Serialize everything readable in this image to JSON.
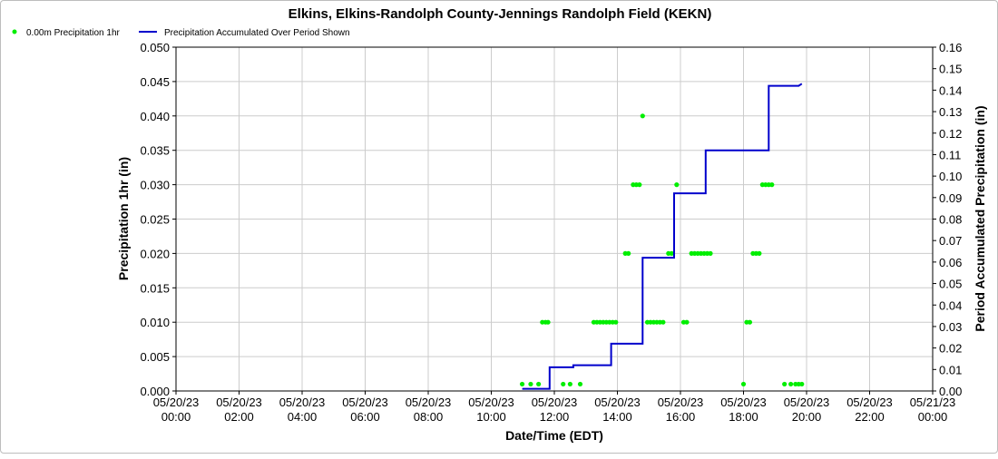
{
  "chart_data": {
    "type": "scatter+line",
    "title": "Elkins, Elkins-Randolph County-Jennings Randolph Field (KEKN)",
    "legend": [
      {
        "name": "0.00m Precipitation 1hr",
        "marker": "dot",
        "color": "#00ee00"
      },
      {
        "name": "Precipitation Accumulated Over Period Shown",
        "marker": "line",
        "color": "#0000cc"
      }
    ],
    "xlabel": "Date/Time (EDT)",
    "ylabel_left": "Precipitation 1hr (in)",
    "ylabel_right": "Period Accumulated Precipitation (in)",
    "x_ticks": [
      {
        "date": "05/20/23",
        "time": "00:00",
        "hour": 0
      },
      {
        "date": "05/20/23",
        "time": "02:00",
        "hour": 2
      },
      {
        "date": "05/20/23",
        "time": "04:00",
        "hour": 4
      },
      {
        "date": "05/20/23",
        "time": "06:00",
        "hour": 6
      },
      {
        "date": "05/20/23",
        "time": "08:00",
        "hour": 8
      },
      {
        "date": "05/20/23",
        "time": "10:00",
        "hour": 10
      },
      {
        "date": "05/20/23",
        "time": "12:00",
        "hour": 12
      },
      {
        "date": "05/20/23",
        "time": "14:00",
        "hour": 14
      },
      {
        "date": "05/20/23",
        "time": "16:00",
        "hour": 16
      },
      {
        "date": "05/20/23",
        "time": "18:00",
        "hour": 18
      },
      {
        "date": "05/20/23",
        "time": "20:00",
        "hour": 20
      },
      {
        "date": "05/20/23",
        "time": "22:00",
        "hour": 22
      },
      {
        "date": "05/21/23",
        "time": "00:00",
        "hour": 24
      }
    ],
    "y_left_ticks": [
      "0.000",
      "0.005",
      "0.010",
      "0.015",
      "0.020",
      "0.025",
      "0.030",
      "0.035",
      "0.040",
      "0.045",
      "0.050"
    ],
    "y_right_ticks": [
      "0.00",
      "0.01",
      "0.02",
      "0.03",
      "0.04",
      "0.05",
      "0.06",
      "0.07",
      "0.08",
      "0.09",
      "0.10",
      "0.11",
      "0.12",
      "0.13",
      "0.14",
      "0.15",
      "0.16"
    ],
    "xlim": [
      0,
      24
    ],
    "ylim_left": [
      0,
      0.05
    ],
    "ylim_right": [
      0,
      0.16
    ],
    "grid": true,
    "legend_position": "top-left",
    "precip_1hr_points": [
      {
        "hour": 10.98,
        "value": 0.001
      },
      {
        "hour": 11.25,
        "value": 0.001
      },
      {
        "hour": 11.5,
        "value": 0.001
      },
      {
        "hour": 11.62,
        "value": 0.01
      },
      {
        "hour": 11.72,
        "value": 0.01
      },
      {
        "hour": 11.8,
        "value": 0.01
      },
      {
        "hour": 12.28,
        "value": 0.001
      },
      {
        "hour": 12.5,
        "value": 0.001
      },
      {
        "hour": 12.82,
        "value": 0.001
      },
      {
        "hour": 13.25,
        "value": 0.01
      },
      {
        "hour": 13.35,
        "value": 0.01
      },
      {
        "hour": 13.45,
        "value": 0.01
      },
      {
        "hour": 13.55,
        "value": 0.01
      },
      {
        "hour": 13.65,
        "value": 0.01
      },
      {
        "hour": 13.75,
        "value": 0.01
      },
      {
        "hour": 13.85,
        "value": 0.01
      },
      {
        "hour": 13.95,
        "value": 0.01
      },
      {
        "hour": 14.25,
        "value": 0.02
      },
      {
        "hour": 14.35,
        "value": 0.02
      },
      {
        "hour": 14.5,
        "value": 0.03
      },
      {
        "hour": 14.6,
        "value": 0.03
      },
      {
        "hour": 14.7,
        "value": 0.03
      },
      {
        "hour": 14.8,
        "value": 0.04
      },
      {
        "hour": 14.95,
        "value": 0.01
      },
      {
        "hour": 15.05,
        "value": 0.01
      },
      {
        "hour": 15.15,
        "value": 0.01
      },
      {
        "hour": 15.25,
        "value": 0.01
      },
      {
        "hour": 15.35,
        "value": 0.01
      },
      {
        "hour": 15.45,
        "value": 0.01
      },
      {
        "hour": 15.62,
        "value": 0.02
      },
      {
        "hour": 15.72,
        "value": 0.02
      },
      {
        "hour": 15.88,
        "value": 0.03
      },
      {
        "hour": 16.1,
        "value": 0.01
      },
      {
        "hour": 16.2,
        "value": 0.01
      },
      {
        "hour": 16.35,
        "value": 0.02
      },
      {
        "hour": 16.45,
        "value": 0.02
      },
      {
        "hour": 16.55,
        "value": 0.02
      },
      {
        "hour": 16.65,
        "value": 0.02
      },
      {
        "hour": 16.75,
        "value": 0.02
      },
      {
        "hour": 16.85,
        "value": 0.02
      },
      {
        "hour": 16.95,
        "value": 0.02
      },
      {
        "hour": 18.0,
        "value": 0.001
      },
      {
        "hour": 18.1,
        "value": 0.01
      },
      {
        "hour": 18.2,
        "value": 0.01
      },
      {
        "hour": 18.3,
        "value": 0.02
      },
      {
        "hour": 18.4,
        "value": 0.02
      },
      {
        "hour": 18.5,
        "value": 0.02
      },
      {
        "hour": 18.6,
        "value": 0.03
      },
      {
        "hour": 18.7,
        "value": 0.03
      },
      {
        "hour": 18.8,
        "value": 0.03
      },
      {
        "hour": 18.9,
        "value": 0.03
      },
      {
        "hour": 19.3,
        "value": 0.001
      },
      {
        "hour": 19.5,
        "value": 0.001
      },
      {
        "hour": 19.65,
        "value": 0.001
      },
      {
        "hour": 19.75,
        "value": 0.001
      },
      {
        "hour": 19.85,
        "value": 0.001
      }
    ],
    "accumulated_line": [
      {
        "hour": 10.98,
        "value": 0.001
      },
      {
        "hour": 11.85,
        "value": 0.001
      },
      {
        "hour": 11.85,
        "value": 0.011
      },
      {
        "hour": 12.6,
        "value": 0.011
      },
      {
        "hour": 12.6,
        "value": 0.012
      },
      {
        "hour": 13.8,
        "value": 0.012
      },
      {
        "hour": 13.8,
        "value": 0.022
      },
      {
        "hour": 14.8,
        "value": 0.022
      },
      {
        "hour": 14.8,
        "value": 0.062
      },
      {
        "hour": 15.8,
        "value": 0.062
      },
      {
        "hour": 15.8,
        "value": 0.092
      },
      {
        "hour": 16.8,
        "value": 0.092
      },
      {
        "hour": 16.8,
        "value": 0.112
      },
      {
        "hour": 18.8,
        "value": 0.112
      },
      {
        "hour": 18.8,
        "value": 0.142
      },
      {
        "hour": 19.75,
        "value": 0.142
      },
      {
        "hour": 19.85,
        "value": 0.143
      }
    ]
  }
}
